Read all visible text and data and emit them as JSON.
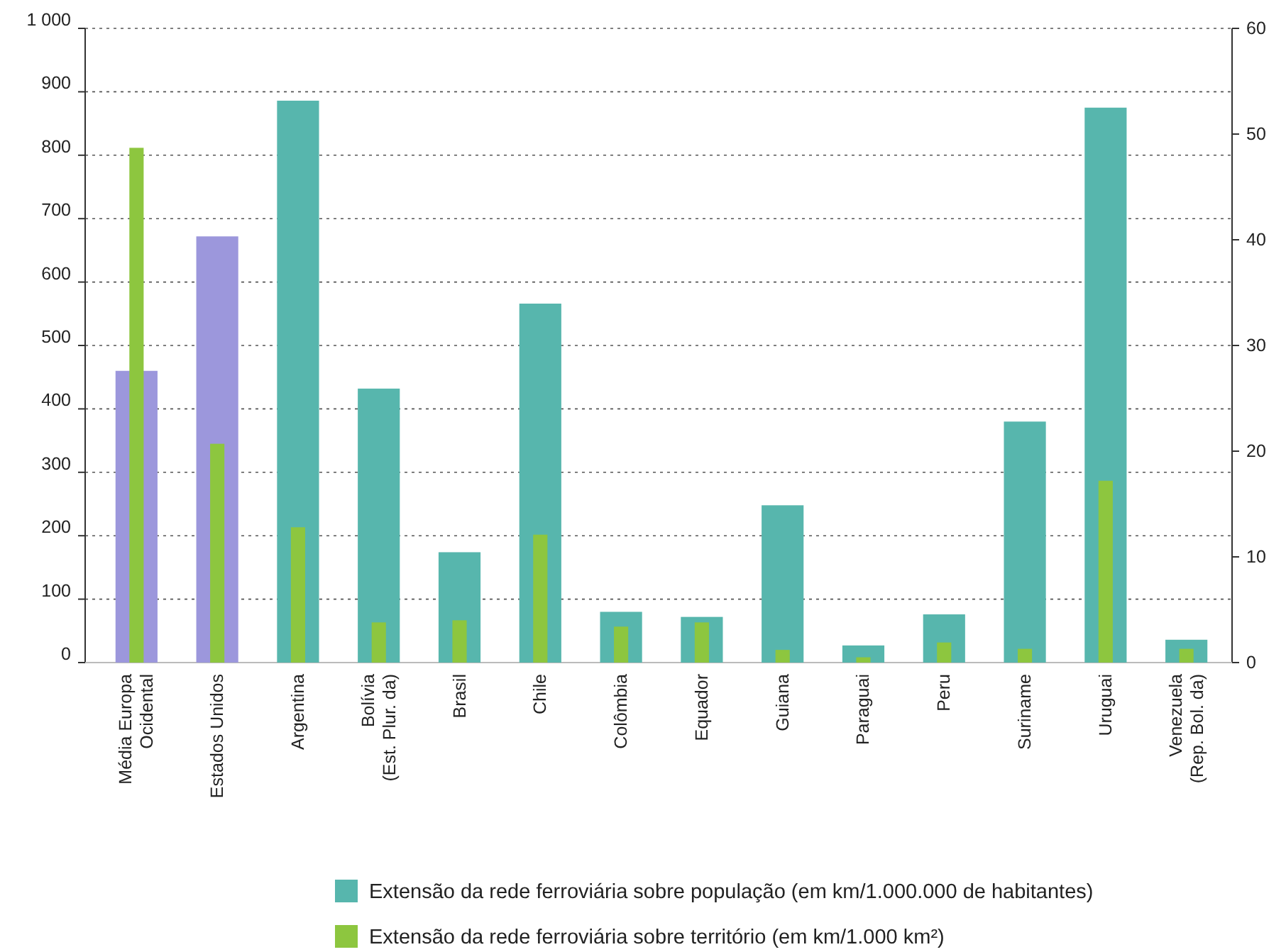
{
  "chart_data": {
    "type": "bar",
    "categories": [
      "Média Europa\nOcidental",
      "Estados Unidos",
      "Argentina",
      "Bolívia\n(Est. Plur. da)",
      "Brasil",
      "Chile",
      "Colômbia",
      "Equador",
      "Guiana",
      "Paraguai",
      "Peru",
      "Suriname",
      "Uruguai",
      "Venezuela\n(Rep. Bol. da)"
    ],
    "series": [
      {
        "name": "Extensão da rede ferroviária sobre população (em km/1.000.000 de habitantes)",
        "color": "#57b6ad",
        "colors": [
          "#9c97dc",
          "#9c97dc",
          "#57b6ad",
          "#57b6ad",
          "#57b6ad",
          "#57b6ad",
          "#57b6ad",
          "#57b6ad",
          "#57b6ad",
          "#57b6ad",
          "#57b6ad",
          "#57b6ad",
          "#57b6ad",
          "#57b6ad"
        ],
        "values": [
          460,
          672,
          886,
          432,
          174,
          566,
          80,
          72,
          248,
          27,
          76,
          380,
          875,
          36
        ]
      },
      {
        "name": "Extensão da rede ferroviária sobre território (em km/1.000 km²)",
        "color": "#8dc63f",
        "axis": "y2",
        "values": [
          48.7,
          20.7,
          12.8,
          3.8,
          4.0,
          12.1,
          3.4,
          3.8,
          1.2,
          0.5,
          1.9,
          1.3,
          17.2,
          1.3
        ]
      }
    ],
    "ylim": [
      0,
      1000
    ],
    "yticks": [
      0,
      100,
      200,
      300,
      400,
      500,
      600,
      700,
      800,
      900,
      {
        "value": 1000,
        "label": "1 000"
      }
    ],
    "y2lim": [
      0,
      60
    ],
    "y2ticks": [
      0,
      10,
      20,
      30,
      40,
      50,
      60
    ],
    "grid": "y",
    "legend": "bottom right"
  }
}
